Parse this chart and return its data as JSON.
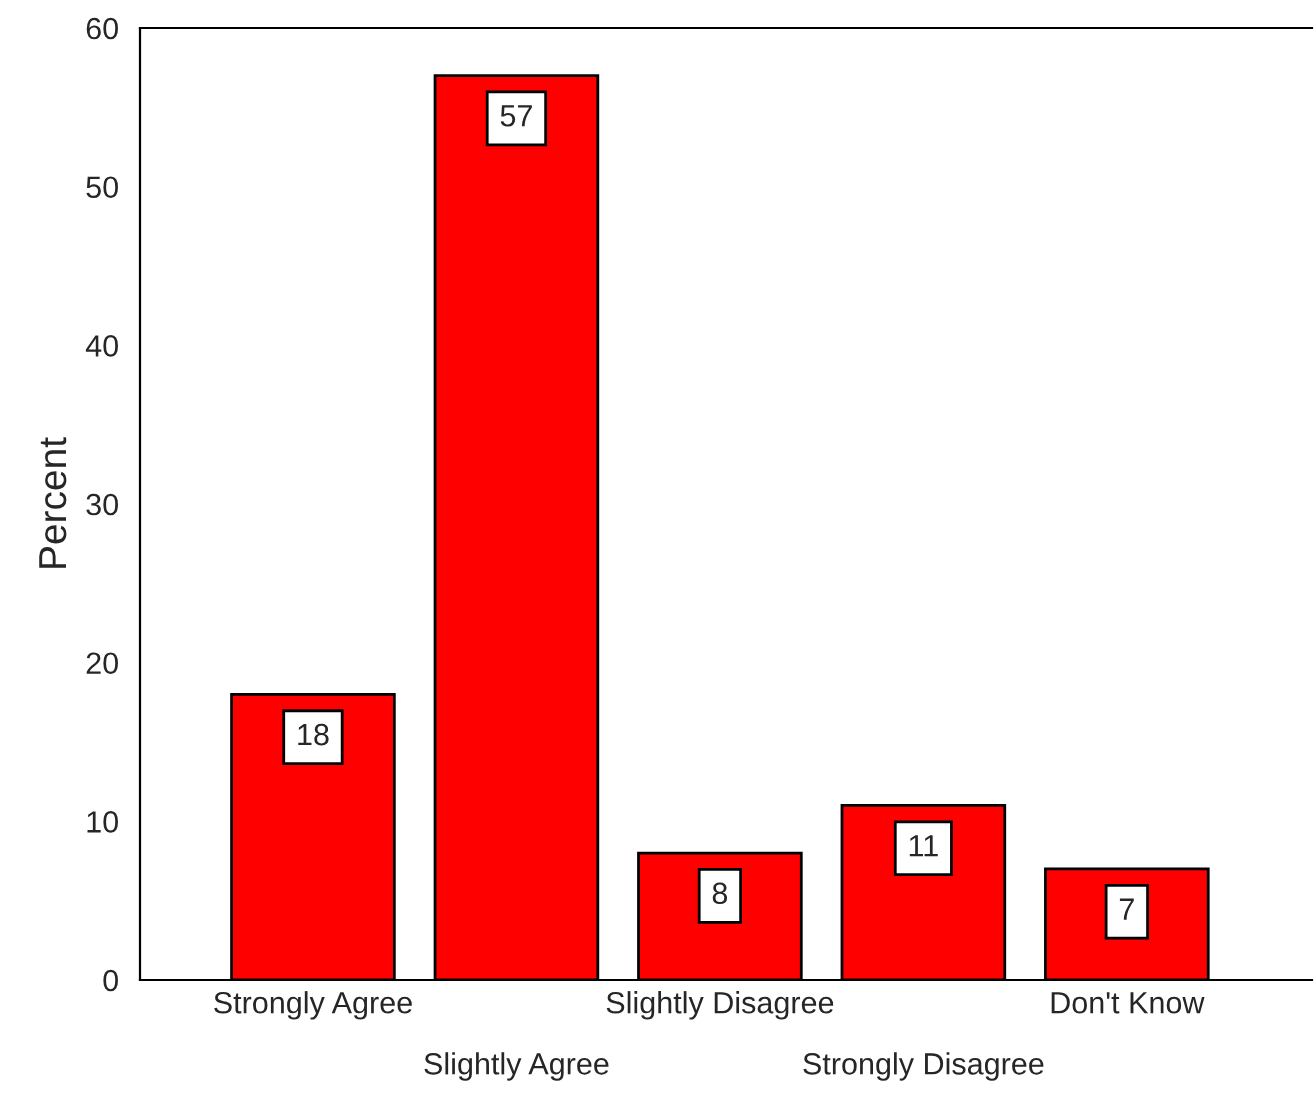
{
  "chart_data": {
    "type": "bar",
    "ylabel": "Percent",
    "categories": [
      "Strongly Agree",
      "Slightly Agree",
      "Slightly Disagree",
      "Strongly Disagree",
      "Don't Know"
    ],
    "values": [
      18,
      57,
      8,
      11,
      7
    ],
    "color": "#ff0000",
    "ylim": [
      0,
      60
    ],
    "yticks": [
      0,
      10,
      20,
      30,
      40,
      50,
      60
    ],
    "data_labels": true,
    "grid": false,
    "legend": false
  }
}
